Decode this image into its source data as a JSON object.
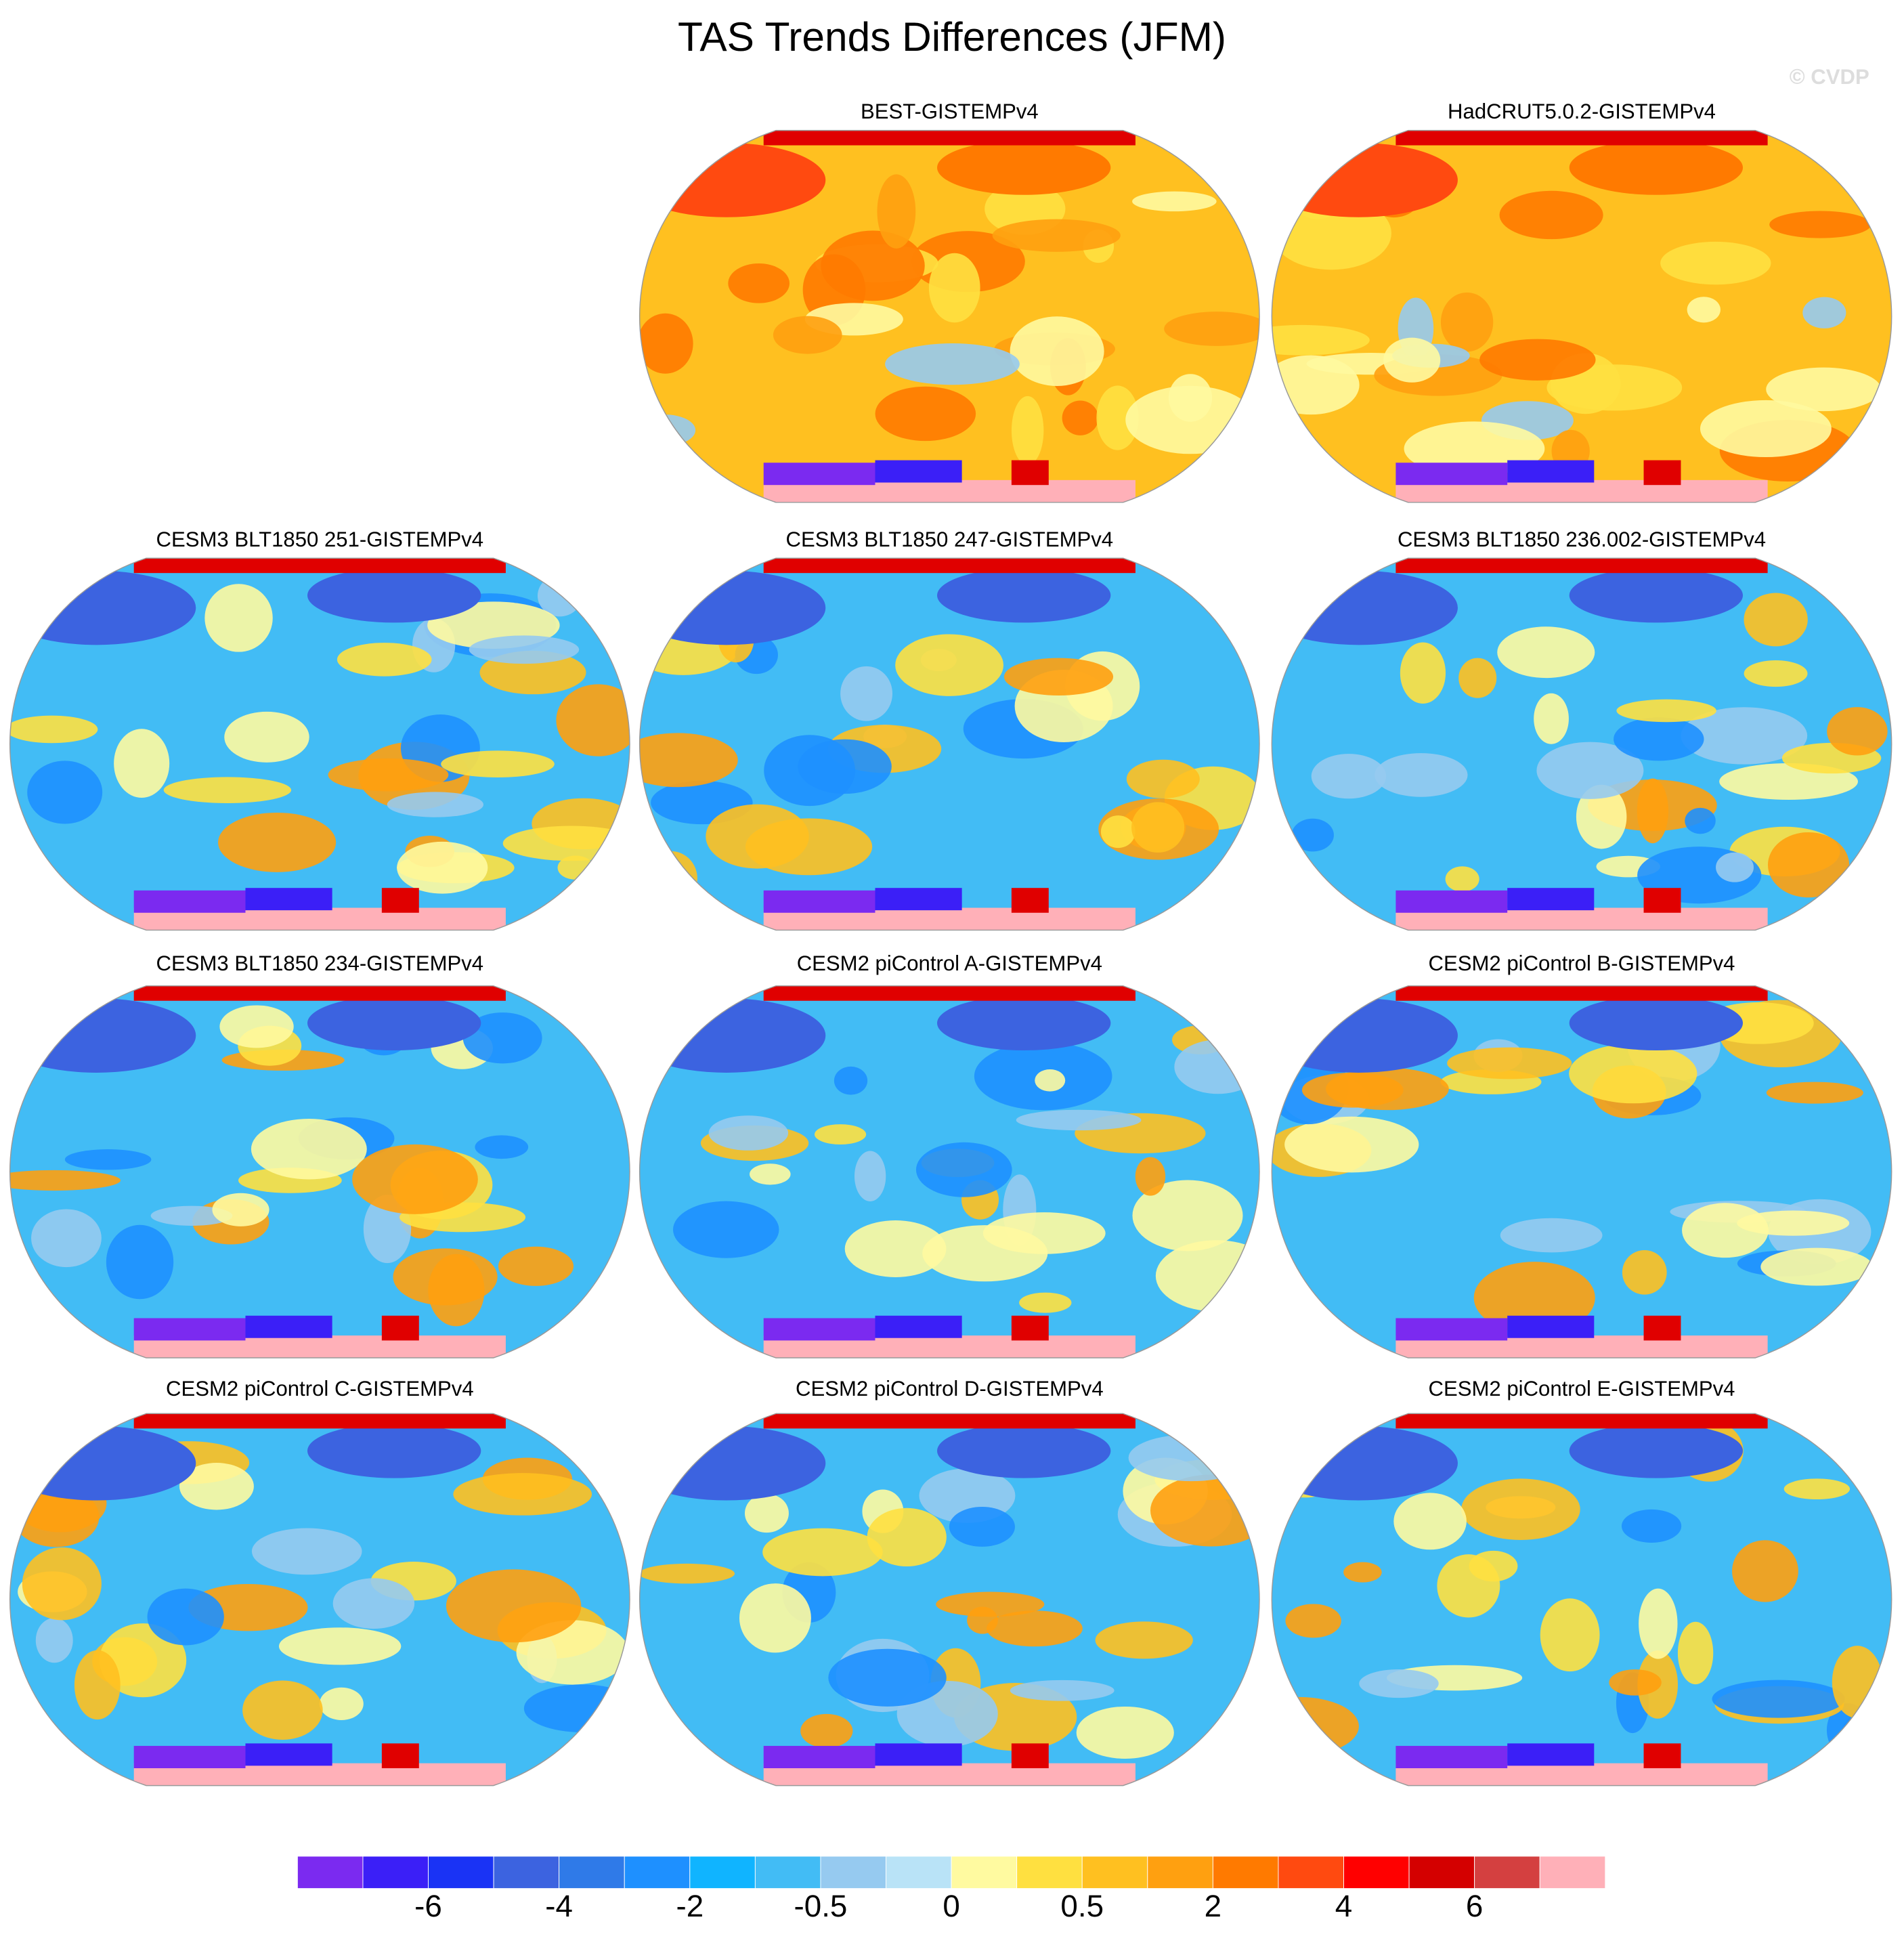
{
  "title": "TAS Trends Differences (JFM)",
  "watermark": "© CVDP",
  "panels": [
    {
      "title": "BEST-GISTEMPv4"
    },
    {
      "title": "HadCRUT5.0.2-GISTEMPv4"
    },
    {
      "title": "CESM3 BLT1850 251-GISTEMPv4"
    },
    {
      "title": "CESM3 BLT1850 247-GISTEMPv4"
    },
    {
      "title": "CESM3 BLT1850 236.002-GISTEMPv4"
    },
    {
      "title": "CESM3 BLT1850 234-GISTEMPv4"
    },
    {
      "title": "CESM2 piControl A-GISTEMPv4"
    },
    {
      "title": "CESM2 piControl B-GISTEMPv4"
    },
    {
      "title": "CESM2 piControl C-GISTEMPv4"
    },
    {
      "title": "CESM2 piControl D-GISTEMPv4"
    },
    {
      "title": "CESM2 piControl E-GISTEMPv4"
    }
  ],
  "colorbar": {
    "colors": [
      "#7b2af0",
      "#3b1ff7",
      "#1a33f5",
      "#3c63e0",
      "#2f7ae8",
      "#1e90ff",
      "#10b4ff",
      "#42bcf5",
      "#96caf0",
      "#b9e3f7",
      "#fffaa0",
      "#ffe040",
      "#ffc020",
      "#ffa010",
      "#ff7a00",
      "#ff4a10",
      "#ff0000",
      "#d40000",
      "#d44040",
      "#ffb0b8"
    ],
    "labels": [
      -6,
      -4,
      -2,
      -0.5,
      0,
      0.5,
      2,
      4,
      6
    ]
  }
}
